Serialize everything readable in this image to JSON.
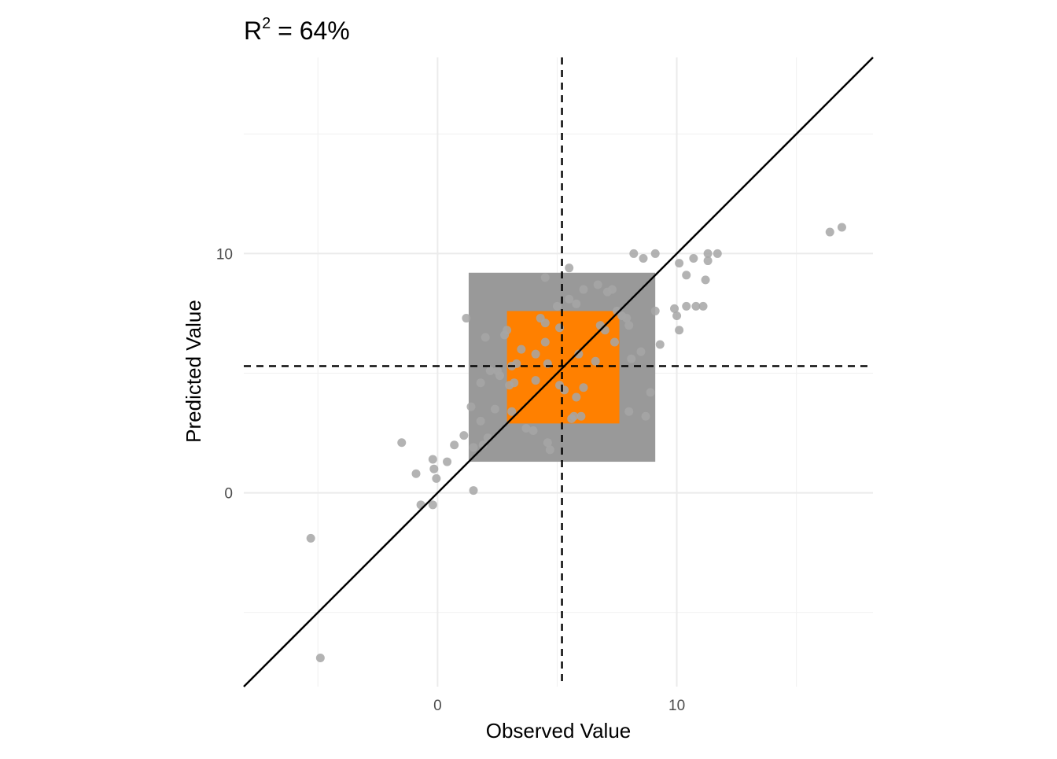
{
  "chart_data": {
    "type": "scatter",
    "title": "R",
    "title_superscript": "2",
    "title_suffix": " = 64%",
    "xlabel": "Observed Value",
    "ylabel": "Predicted Value",
    "xlim": [
      -8.1,
      18.2
    ],
    "ylim": [
      -8.1,
      18.2
    ],
    "x_ticks": [
      0,
      10
    ],
    "y_ticks": [
      0,
      10
    ],
    "x_minor_ticks": [
      -5,
      5,
      15
    ],
    "y_minor_ticks": [
      -5,
      5,
      15
    ],
    "grid": true,
    "reference_line": {
      "type": "identity",
      "slope": 1,
      "intercept": 0,
      "color": "#000000"
    },
    "mean_x": 5.2,
    "mean_y": 5.3,
    "outer_box": {
      "x": [
        1.3,
        9.1
      ],
      "y": [
        1.3,
        9.2
      ],
      "color": "#999999"
    },
    "inner_box": {
      "x": [
        2.9,
        7.6
      ],
      "y": [
        2.9,
        7.6
      ],
      "color": "#ff8000"
    },
    "point_color": "#a6a6a6",
    "points": [
      [
        -5.3,
        -1.9
      ],
      [
        -4.9,
        -6.9
      ],
      [
        -1.5,
        2.1
      ],
      [
        -0.9,
        0.8
      ],
      [
        -0.7,
        -0.5
      ],
      [
        -0.2,
        -0.5
      ],
      [
        -0.2,
        1.4
      ],
      [
        -0.15,
        1.0
      ],
      [
        -0.05,
        0.6
      ],
      [
        0.4,
        1.3
      ],
      [
        0.7,
        2.0
      ],
      [
        1.1,
        2.4
      ],
      [
        1.5,
        0.1
      ],
      [
        1.5,
        1.9
      ],
      [
        1.4,
        3.6
      ],
      [
        1.8,
        3.0
      ],
      [
        1.9,
        2.0
      ],
      [
        2.1,
        2.3
      ],
      [
        1.2,
        7.3
      ],
      [
        2.0,
        6.5
      ],
      [
        1.8,
        4.6
      ],
      [
        2.2,
        5.1
      ],
      [
        2.4,
        3.5
      ],
      [
        2.5,
        5.1
      ],
      [
        2.6,
        4.9
      ],
      [
        2.8,
        6.6
      ],
      [
        2.9,
        6.8
      ],
      [
        3.0,
        4.5
      ],
      [
        3.1,
        3.4
      ],
      [
        3.2,
        4.6
      ],
      [
        3.1,
        5.3
      ],
      [
        3.3,
        5.4
      ],
      [
        3.5,
        6.0
      ],
      [
        3.7,
        2.7
      ],
      [
        4.0,
        2.6
      ],
      [
        4.1,
        5.8
      ],
      [
        4.1,
        4.7
      ],
      [
        4.3,
        7.3
      ],
      [
        4.5,
        9.0
      ],
      [
        4.5,
        7.1
      ],
      [
        4.5,
        6.3
      ],
      [
        4.6,
        2.1
      ],
      [
        4.7,
        1.8
      ],
      [
        4.6,
        5.4
      ],
      [
        5.0,
        7.8
      ],
      [
        5.1,
        6.9
      ],
      [
        5.1,
        4.5
      ],
      [
        5.3,
        4.3
      ],
      [
        5.5,
        9.4
      ],
      [
        5.5,
        8.1
      ],
      [
        5.6,
        3.1
      ],
      [
        5.7,
        3.2
      ],
      [
        5.8,
        7.9
      ],
      [
        5.8,
        4.0
      ],
      [
        5.9,
        5.8
      ],
      [
        6.0,
        3.2
      ],
      [
        6.1,
        8.5
      ],
      [
        6.1,
        4.4
      ],
      [
        6.6,
        5.5
      ],
      [
        6.7,
        8.7
      ],
      [
        6.8,
        7.0
      ],
      [
        7.0,
        6.8
      ],
      [
        7.1,
        8.4
      ],
      [
        7.3,
        8.5
      ],
      [
        7.4,
        6.3
      ],
      [
        7.5,
        7.6
      ],
      [
        7.7,
        7.4
      ],
      [
        7.9,
        7.3
      ],
      [
        8.0,
        7.0
      ],
      [
        8.0,
        3.4
      ],
      [
        8.1,
        5.6
      ],
      [
        8.2,
        10.0
      ],
      [
        8.5,
        5.9
      ],
      [
        8.6,
        9.8
      ],
      [
        8.7,
        3.2
      ],
      [
        8.9,
        4.2
      ],
      [
        9.1,
        7.6
      ],
      [
        9.3,
        6.2
      ],
      [
        9.1,
        10.0
      ],
      [
        9.9,
        7.7
      ],
      [
        10.0,
        7.4
      ],
      [
        10.1,
        9.6
      ],
      [
        10.1,
        6.8
      ],
      [
        10.4,
        9.1
      ],
      [
        10.4,
        7.8
      ],
      [
        10.7,
        9.8
      ],
      [
        10.8,
        7.8
      ],
      [
        11.1,
        7.8
      ],
      [
        11.2,
        8.9
      ],
      [
        11.3,
        10.0
      ],
      [
        11.3,
        9.7
      ],
      [
        11.7,
        10.0
      ],
      [
        16.4,
        10.9
      ],
      [
        16.9,
        11.1
      ]
    ]
  }
}
